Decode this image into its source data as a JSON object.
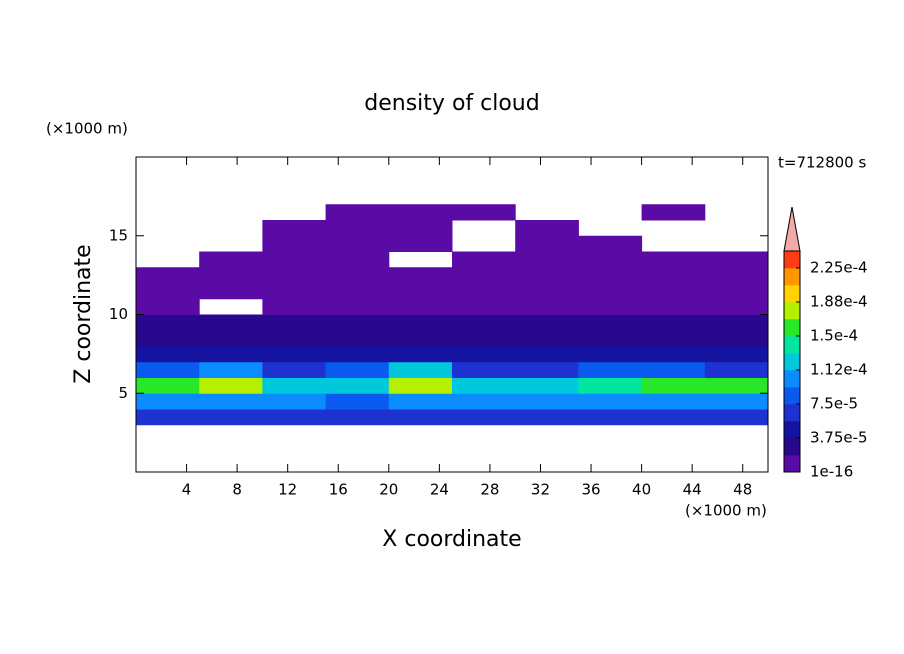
{
  "chart_data": {
    "type": "contour",
    "title": "density of cloud",
    "xlabel": "X coordinate",
    "ylabel": "Z coordinate",
    "xlabel_units": "(×1000 m)",
    "ylabel_units": "(×1000 m)",
    "annotation": "t=712800 s",
    "xlim": [
      0,
      50
    ],
    "ylim": [
      0,
      20
    ],
    "xticks": [
      4,
      8,
      12,
      16,
      20,
      24,
      28,
      32,
      36,
      40,
      44,
      48
    ],
    "yticks": [
      5,
      10,
      15
    ],
    "x": [
      2.5,
      7.5,
      12.5,
      17.5,
      22.5,
      27.5,
      32.5,
      37.5,
      42.5,
      47.5
    ],
    "z": [
      3.5,
      4.5,
      5.5,
      6.5,
      7.5,
      8.5,
      9.5,
      10.5,
      11.5,
      12.5,
      13.5,
      14.5,
      15.5,
      16.5
    ],
    "values": [
      [
        7e-05,
        7e-05,
        7e-05,
        7e-05,
        7e-05,
        7e-05,
        7e-05,
        7e-05,
        7e-05,
        7e-05
      ],
      [
        0.0001,
        0.0001,
        0.0001,
        9e-05,
        0.0001,
        0.0001,
        0.0001,
        0.0001,
        0.0001,
        0.0001
      ],
      [
        0.00016,
        0.00017,
        0.00012,
        0.00013,
        0.00017,
        0.00012,
        0.00012,
        0.00014,
        0.00016,
        0.00016
      ],
      [
        8e-05,
        0.00011,
        6e-05,
        9e-05,
        0.00012,
        6e-05,
        7e-05,
        9e-05,
        8e-05,
        7e-05
      ],
      [
        4e-05,
        4e-05,
        4e-05,
        5e-05,
        5e-05,
        4e-05,
        5e-05,
        4e-05,
        4e-05,
        4e-05
      ],
      [
        3e-05,
        3e-05,
        3e-05,
        3e-05,
        3e-05,
        3e-05,
        3e-05,
        3e-05,
        3e-05,
        3e-05
      ],
      [
        2e-05,
        2e-05,
        2e-05,
        2e-05,
        2e-05,
        2e-05,
        2e-05,
        2e-05,
        2e-05,
        2e-05
      ],
      [
        1e-05,
        null,
        1e-05,
        1e-05,
        1e-05,
        1e-05,
        1e-05,
        1e-05,
        1e-05,
        1e-05
      ],
      [
        1e-05,
        1e-05,
        1e-05,
        1e-05,
        1e-05,
        1e-05,
        1e-05,
        1e-05,
        1e-05,
        1e-05
      ],
      [
        1e-05,
        1e-05,
        1e-05,
        1e-05,
        1e-05,
        1e-05,
        1e-05,
        1e-05,
        1e-05,
        1e-05
      ],
      [
        null,
        1e-05,
        1e-05,
        1e-05,
        null,
        1e-05,
        1e-05,
        1e-05,
        1e-05,
        1e-05
      ],
      [
        null,
        null,
        1e-05,
        1e-05,
        1e-05,
        null,
        1e-05,
        1e-05,
        null,
        null
      ],
      [
        null,
        null,
        1e-05,
        1e-05,
        1e-05,
        null,
        1e-05,
        null,
        null,
        null
      ],
      [
        null,
        null,
        null,
        1e-05,
        1e-05,
        1e-05,
        null,
        null,
        1e-05,
        null
      ]
    ],
    "clim": [
      1e-16,
      0.00024375
    ],
    "colors": [
      "#5a0aa5",
      "#28088c",
      "#1414a0",
      "#1e32d2",
      "#0a5af0",
      "#0a8cff",
      "#00c8dc",
      "#00e6a0",
      "#28e628",
      "#b4f000",
      "#ffd200",
      "#ff9600",
      "#ff3c14"
    ],
    "extend_color": "#f4a8a8",
    "cticks": [
      1e-16,
      {
        "value": 3.75e-05,
        "label": "3.75e-5"
      },
      {
        "value": 7.5e-05,
        "label": "7.5e-5"
      },
      {
        "value": 0.0001125,
        "label": "1.12e-4"
      },
      {
        "value": 0.00015,
        "label": "1.5e-4"
      },
      {
        "value": 0.0001875,
        "label": "1.88e-4"
      },
      {
        "value": 0.000225,
        "label": "2.25e-4"
      }
    ]
  }
}
